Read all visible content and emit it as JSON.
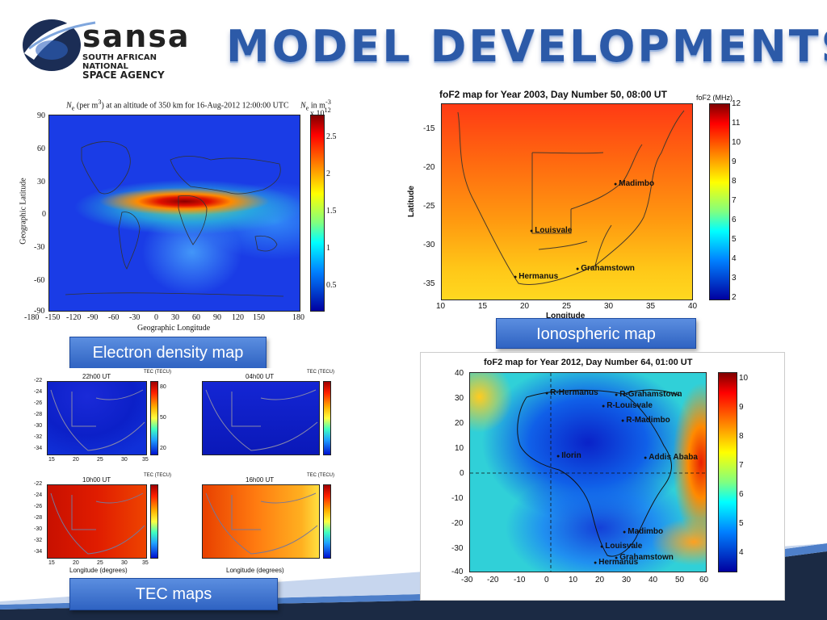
{
  "header": {
    "logo": {
      "wordmark": "sansa",
      "subtitle_line1": "SOUTH AFRICAN NATIONAL",
      "subtitle_line2": "SPACE AGENCY"
    },
    "title": "MODEL DEVELOPMENTS"
  },
  "electron_density": {
    "title": "N_e (per m^3) at an altitude of 350 km for 16-Aug-2012 12:00:00 UTC",
    "title_ne": "N",
    "title_ne_sub": "e",
    "title_rest": "(per m",
    "title_exp": "3",
    "title_tail": ") at an altitude of 350 km for 16-Aug-2012 12:00:00 UTC",
    "cb_label": "N",
    "cb_label_sub": "e",
    "cb_label_rest": "in m",
    "cb_label_exp": "-3",
    "cb_scale": "x 10",
    "cb_scale_exp": "12",
    "xlabel": "Geographic Longitude",
    "ylabel": "Geographic Latitude",
    "xticks": [
      "-180",
      "-150",
      "-120",
      "-90",
      "-60",
      "-30",
      "0",
      "30",
      "60",
      "90",
      "120",
      "150",
      "180"
    ],
    "yticks": [
      "90",
      "60",
      "30",
      "0",
      "-30",
      "-60",
      "-90"
    ],
    "cbticks": [
      "2.5",
      "2",
      "1.5",
      "1",
      "0.5"
    ],
    "caption": "Electron density map"
  },
  "ionospheric": {
    "title": "foF2 map for Year 2003, Day Number  50,  08:00 UT",
    "cb_label": "foF2 (MHz)",
    "xlabel": "Longitude",
    "ylabel": "Latitude",
    "xticks": [
      "10",
      "15",
      "20",
      "25",
      "30",
      "35",
      "40"
    ],
    "yticks": [
      "-15",
      "-20",
      "-25",
      "-30",
      "-35"
    ],
    "cbticks": [
      "12",
      "11",
      "10",
      "9",
      "8",
      "7",
      "6",
      "5",
      "4",
      "3",
      "2"
    ],
    "cities": [
      "Madimbo",
      "Louisvale",
      "Grahamstown",
      "Hermanus"
    ],
    "caption": "Ionospheric map"
  },
  "tec": {
    "panels": [
      {
        "time": "22h00 UT",
        "cb": "TEC (TECU)"
      },
      {
        "time": "04h00 UT",
        "cb": "TEC (TECU)"
      },
      {
        "time": "10h00 UT",
        "cb": "TEC (TECU)"
      },
      {
        "time": "16h00 UT",
        "cb": "TEC (TECU)"
      }
    ],
    "ylabel": "Latitude (degrees)",
    "xlabel": "Longitude (degrees)",
    "yticks": [
      "-22",
      "-24",
      "-26",
      "-28",
      "-30",
      "-32",
      "-34"
    ],
    "xticks": [
      "15",
      "20",
      "25",
      "30",
      "35"
    ],
    "cbticks": [
      "80",
      "70",
      "60",
      "50",
      "40",
      "30",
      "20"
    ],
    "caption": "TEC maps"
  },
  "africa_map": {
    "title": "foF2 map for Year 2012, Day Number  64, 01:00 UT",
    "xticks": [
      "-30",
      "-20",
      "-10",
      "0",
      "10",
      "20",
      "30",
      "40",
      "50",
      "60"
    ],
    "yticks": [
      "40",
      "30",
      "20",
      "10",
      "0",
      "-10",
      "-20",
      "-30",
      "-40"
    ],
    "cbticks": [
      "10",
      "9",
      "8",
      "7",
      "6",
      "5",
      "4"
    ],
    "stations": [
      "R-Hermanus",
      "R-Grahamstown",
      "R-Louisvale",
      "R-Madimbo",
      "Ilorin",
      "Addis Ababa",
      "Madimbo",
      "Louisvale",
      "Grahamstown",
      "Hermanus"
    ]
  },
  "colors": {
    "title_blue": "#2c5aa8",
    "caption_blue": "#3b6fd0",
    "band_dark": "#1b2a44",
    "band_light": "#4e7fc9"
  }
}
